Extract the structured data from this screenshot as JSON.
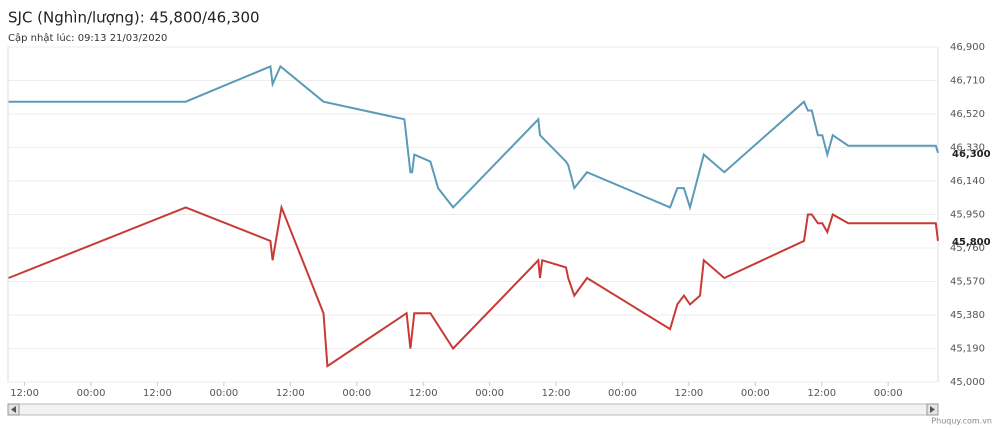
{
  "chart_data": {
    "type": "line",
    "title": "SJC (Nghìn/lượng): 45,800/46,300",
    "subtitle": "Cập nhật lúc: 09:13 21/03/2020",
    "source": "Phuquy.com.vn",
    "xlim": [
      9,
      177
    ],
    "xticks": [
      {
        "value": 12,
        "label": "12:00"
      },
      {
        "value": 24,
        "label": "00:00"
      },
      {
        "value": 36,
        "label": "12:00"
      },
      {
        "value": 48,
        "label": "00:00"
      },
      {
        "value": 60,
        "label": "12:00"
      },
      {
        "value": 72,
        "label": "00:00"
      },
      {
        "value": 84,
        "label": "12:00"
      },
      {
        "value": 96,
        "label": "00:00"
      },
      {
        "value": 108,
        "label": "12:00"
      },
      {
        "value": 120,
        "label": "00:00"
      },
      {
        "value": 132,
        "label": "12:00"
      },
      {
        "value": 144,
        "label": "00:00"
      },
      {
        "value": 156,
        "label": "12:00"
      },
      {
        "value": 168,
        "label": "00:00"
      }
    ],
    "ylim": [
      45000,
      46900
    ],
    "yticks": [
      {
        "value": 45000,
        "label": "45,000"
      },
      {
        "value": 45190,
        "label": "45,190"
      },
      {
        "value": 45380,
        "label": "45,380"
      },
      {
        "value": 45570,
        "label": "45,570"
      },
      {
        "value": 45760,
        "label": "45,760"
      },
      {
        "value": 45950,
        "label": "45,950"
      },
      {
        "value": 46140,
        "label": "46,140"
      },
      {
        "value": 46330,
        "label": "46,330"
      },
      {
        "value": 46520,
        "label": "46,520"
      },
      {
        "value": 46710,
        "label": "46,710"
      },
      {
        "value": 46900,
        "label": "46,900"
      }
    ],
    "grid": true,
    "series": [
      {
        "color": "#5b9ab8",
        "current_label": "46,300",
        "x": [
          9.1,
          41.1,
          56.4,
          56.8,
          58.2,
          66,
          80.6,
          81.7,
          82,
          82.4,
          85.3,
          86.7,
          89.4,
          104.8,
          105.1,
          109.8,
          110.2,
          111.3,
          113.6,
          128.6,
          129.9,
          131.1,
          132.2,
          134.7,
          138.4,
          152.8,
          153.5,
          154.2,
          155.3,
          156.1,
          157,
          158,
          160.8,
          176.6,
          177
        ],
        "values": [
          46590,
          46590,
          46790,
          46690,
          46790,
          46590,
          46490,
          46190,
          46190,
          46290,
          46250,
          46100,
          45990,
          46490,
          46400,
          46250,
          46230,
          46100,
          46190,
          45990,
          46100,
          46100,
          45990,
          46290,
          46190,
          46590,
          46540,
          46540,
          46400,
          46400,
          46290,
          46400,
          46340,
          46340,
          46300
        ]
      },
      {
        "color": "#c83a36",
        "current_label": "45,800",
        "x": [
          9.1,
          41.1,
          56.4,
          56.8,
          58.4,
          66,
          66.7,
          81,
          81.7,
          82.4,
          85.3,
          89.4,
          104.8,
          105.1,
          105.5,
          109.8,
          110.2,
          111.3,
          113.6,
          128.6,
          129.9,
          131.1,
          132.2,
          134,
          134.7,
          138.4,
          152.8,
          153.5,
          154.2,
          155.3,
          156.1,
          157,
          158,
          160.8,
          176.6,
          177
        ],
        "values": [
          45590,
          45990,
          45800,
          45690,
          45990,
          45390,
          45090,
          45390,
          45190,
          45390,
          45390,
          45190,
          45690,
          45590,
          45690,
          45650,
          45590,
          45490,
          45590,
          45300,
          45440,
          45490,
          45440,
          45490,
          45690,
          45590,
          45800,
          45950,
          45950,
          45900,
          45900,
          45850,
          45950,
          45900,
          45900,
          45800
        ]
      }
    ]
  }
}
